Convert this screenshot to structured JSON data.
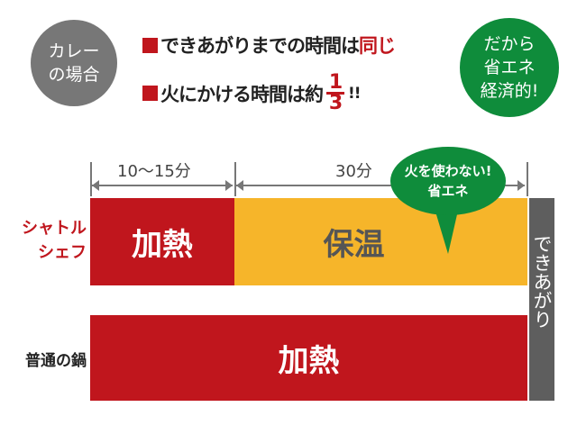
{
  "badge_left": {
    "line1": "カレー",
    "line2": "の場合",
    "color": "#777777"
  },
  "headline": {
    "line1_prefix": "できあがりまでの時間は",
    "line1_emphasis": "同じ",
    "line2_prefix": "火にかける時間は約",
    "fraction_numerator": "1",
    "fraction_denominator": "3",
    "line2_suffix": "!!"
  },
  "badge_right": {
    "line1": "だから",
    "line2": "省エネ",
    "line3": "経済的!",
    "color": "#0f8c3b"
  },
  "timeline": {
    "segment1_label": "10〜15分",
    "segment2_label": "30分"
  },
  "bubble": {
    "line1": "火を使わない!",
    "line2": "省エネ"
  },
  "rows": [
    {
      "label_line1": "シャトル",
      "label_line2": "シェフ",
      "heat": "加熱",
      "keep_warm": "保温"
    },
    {
      "label": "普通の鍋",
      "heat": "加熱"
    }
  ],
  "done_label": "できあがり",
  "colors": {
    "red": "#c0161d",
    "yellow": "#f6b52a",
    "gray": "#5e5e5e",
    "green": "#0f8c3b"
  }
}
